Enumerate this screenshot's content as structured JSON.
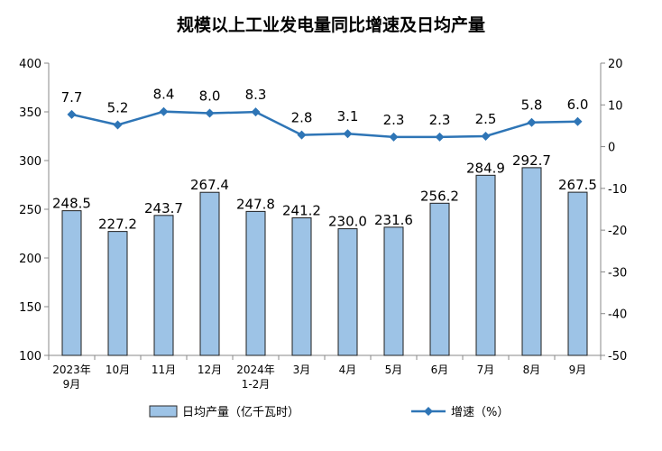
{
  "chart_data": {
    "type": "bar+line",
    "title": "规模以上工业发电量同比增速及日均产量",
    "categories": [
      [
        "2023年",
        "9月"
      ],
      [
        "10月"
      ],
      [
        "11月"
      ],
      [
        "12月"
      ],
      [
        "2024年",
        "1-2月"
      ],
      [
        "3月"
      ],
      [
        "4月"
      ],
      [
        "5月"
      ],
      [
        "6月"
      ],
      [
        "7月"
      ],
      [
        "8月"
      ],
      [
        "9月"
      ]
    ],
    "series": [
      {
        "name": "日均产量（亿千瓦时）",
        "type": "bar",
        "axis": "left",
        "color": "#9DC3E6",
        "values": [
          248.5,
          227.2,
          243.7,
          267.4,
          247.8,
          241.2,
          230.0,
          231.6,
          256.2,
          284.9,
          292.7,
          267.5
        ],
        "labels": [
          "248.5",
          "227.2",
          "243.7",
          "267.4",
          "247.8",
          "241.2",
          "230.0",
          "231.6",
          "256.2",
          "284.9",
          "292.7",
          "267.5"
        ]
      },
      {
        "name": "增速（%）",
        "type": "line",
        "axis": "right",
        "color": "#2E75B6",
        "values": [
          7.7,
          5.2,
          8.4,
          8.0,
          8.3,
          2.8,
          3.1,
          2.3,
          2.3,
          2.5,
          5.8,
          6.0
        ],
        "labels": [
          "7.7",
          "5.2",
          "8.4",
          "8.0",
          "8.3",
          "2.8",
          "3.1",
          "2.3",
          "2.3",
          "2.5",
          "5.8",
          "6.0"
        ]
      }
    ],
    "y_left": {
      "min": 100,
      "max": 400,
      "ticks": [
        100,
        150,
        200,
        250,
        300,
        350,
        400
      ]
    },
    "y_right": {
      "min": -50,
      "max": 20,
      "ticks": [
        -50,
        -40,
        -30,
        -20,
        -10,
        0,
        10,
        20
      ]
    },
    "grid": false,
    "legend_position": "bottom"
  }
}
